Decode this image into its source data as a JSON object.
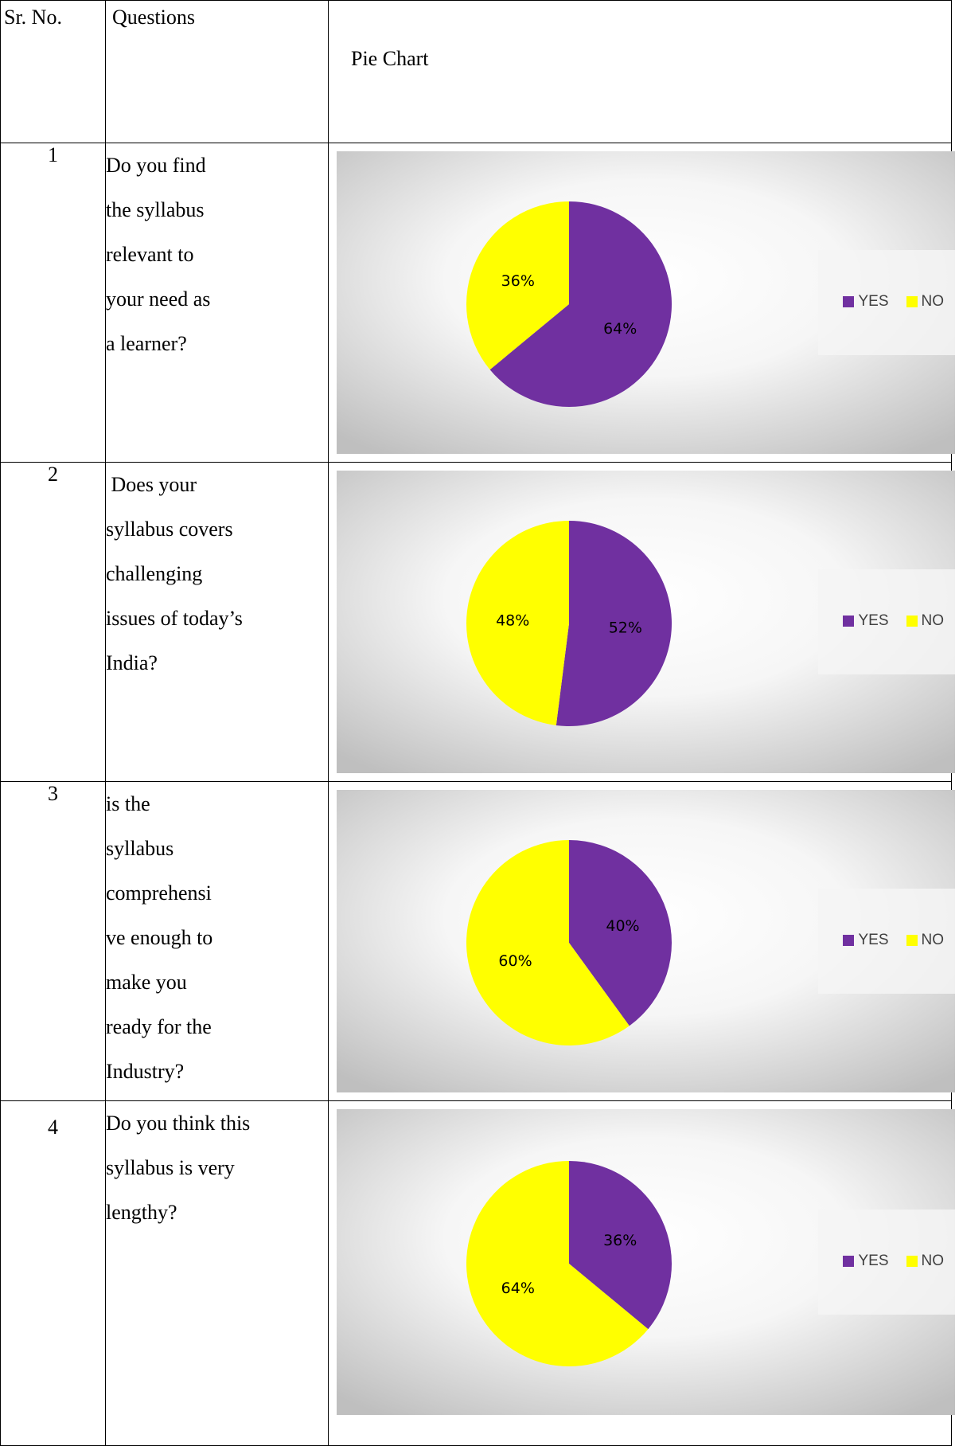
{
  "header": {
    "sr_label": "Sr. No.",
    "questions_label": "Questions",
    "chart_label": "Pie Chart"
  },
  "colors": {
    "yes": "#7030a0",
    "no": "#ffff00"
  },
  "legend": {
    "yes_label": "YES",
    "no_label": "NO"
  },
  "rows": [
    {
      "sr": "1",
      "question_lines": [
        "Do you find",
        "the syllabus",
        "relevant to",
        "your need as",
        "a learner?"
      ]
    },
    {
      "sr": "2",
      "question_lines": [
        " Does your",
        "syllabus covers",
        "challenging",
        "issues of today’s",
        "India?"
      ]
    },
    {
      "sr": "3",
      "question_lines": [
        "is the",
        "syllabus",
        "comprehensi",
        "ve enough to",
        "make you",
        "ready for the",
        "Industry?"
      ]
    },
    {
      "sr": "4",
      "question_lines": [
        "Do you think this",
        "syllabus is very",
        "lengthy?"
      ]
    }
  ],
  "chart_data": [
    {
      "type": "pie",
      "categories": [
        "YES",
        "NO"
      ],
      "values": [
        64,
        36
      ],
      "labels": [
        "64%",
        "36%"
      ],
      "legend": "right"
    },
    {
      "type": "pie",
      "categories": [
        "YES",
        "NO"
      ],
      "values": [
        52,
        48
      ],
      "labels": [
        "52%",
        "48%"
      ],
      "legend": "right"
    },
    {
      "type": "pie",
      "categories": [
        "YES",
        "NO"
      ],
      "values": [
        40,
        60
      ],
      "labels": [
        "40%",
        "60%"
      ],
      "legend": "right"
    },
    {
      "type": "pie",
      "categories": [
        "YES",
        "NO"
      ],
      "values": [
        36,
        64
      ],
      "labels": [
        "36%",
        "64%"
      ],
      "legend": "right"
    }
  ]
}
